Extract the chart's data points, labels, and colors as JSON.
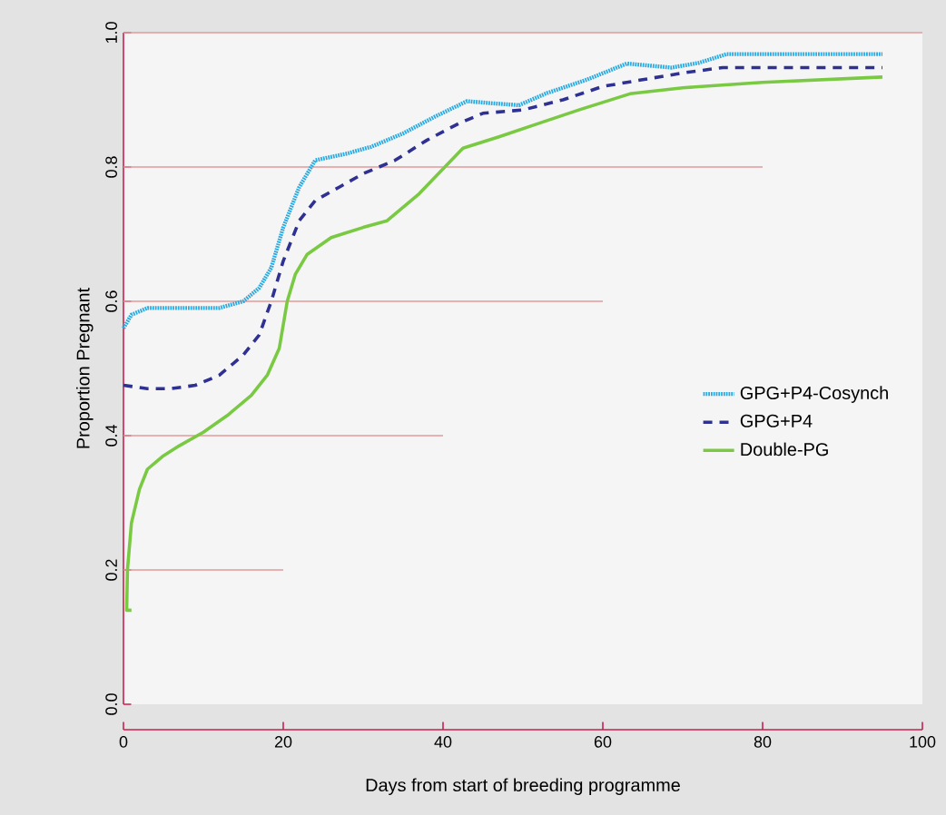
{
  "chart_data": {
    "type": "line",
    "xlabel": "Days from start of breeding programme",
    "ylabel": "Proportion Pregnant",
    "xlim": [
      0,
      100
    ],
    "ylim": [
      0,
      1
    ],
    "xticks": [
      0,
      20,
      40,
      60,
      80,
      100
    ],
    "yticks": [
      {
        "value": 0,
        "label": "0.0"
      },
      0.2,
      0.4,
      0.6,
      0.8,
      {
        "value": 1,
        "label": "1.0"
      }
    ],
    "legend": "right",
    "marker": "none",
    "ref_lines": [
      {
        "axis": "y",
        "value": 0.2,
        "color": "#e39a9a"
      },
      {
        "axis": "y",
        "value": 0.4,
        "color": "#e39a9a"
      },
      {
        "axis": "y",
        "value": 0.6,
        "color": "#e39a9a"
      },
      {
        "axis": "y",
        "value": 0.8,
        "color": "#e39a9a"
      },
      {
        "axis": "y",
        "value": 1.0,
        "color": "#e39a9a"
      }
    ],
    "series": [
      {
        "name": "GPG+P4-Cosynch",
        "color": "#29abe2",
        "line_style": "dotted",
        "x": [
          0,
          1,
          3,
          8,
          12,
          15,
          17,
          18.5,
          20,
          22,
          24,
          26,
          28,
          31,
          35,
          39,
          43,
          46,
          49.5,
          53,
          58,
          63,
          68.6,
          72,
          75.5,
          95
        ],
        "values": [
          0.56,
          0.58,
          0.59,
          0.59,
          0.59,
          0.6,
          0.62,
          0.65,
          0.71,
          0.77,
          0.81,
          0.815,
          0.82,
          0.83,
          0.85,
          0.875,
          0.898,
          0.895,
          0.892,
          0.91,
          0.93,
          0.954,
          0.948,
          0.955,
          0.968,
          0.968
        ]
      },
      {
        "name": "GPG+P4",
        "color": "#2e3192",
        "line_style": "dashed",
        "x": [
          0,
          3,
          6,
          9,
          12,
          15,
          17,
          18.5,
          20,
          22,
          24,
          27,
          30,
          34,
          38,
          42,
          45,
          50,
          55,
          60,
          65,
          70,
          75,
          95
        ],
        "values": [
          0.475,
          0.47,
          0.47,
          0.475,
          0.49,
          0.52,
          0.55,
          0.6,
          0.66,
          0.72,
          0.75,
          0.77,
          0.79,
          0.81,
          0.84,
          0.865,
          0.88,
          0.885,
          0.9,
          0.92,
          0.93,
          0.94,
          0.948,
          0.948
        ]
      },
      {
        "name": "Double-PG",
        "color": "#7ac943",
        "line_style": "solid",
        "x": [
          1,
          0.4,
          0.5,
          1,
          2,
          3,
          5,
          7,
          10,
          13,
          16,
          18,
          19.5,
          20.5,
          21.5,
          23,
          26,
          30,
          33,
          37,
          42.5,
          47,
          52,
          57,
          63.4,
          70,
          80,
          95
        ],
        "values": [
          0.14,
          0.14,
          0.2,
          0.27,
          0.32,
          0.35,
          0.37,
          0.385,
          0.405,
          0.43,
          0.46,
          0.49,
          0.53,
          0.6,
          0.64,
          0.67,
          0.695,
          0.71,
          0.72,
          0.76,
          0.828,
          0.845,
          0.865,
          0.885,
          0.909,
          0.918,
          0.926,
          0.934
        ]
      }
    ]
  }
}
